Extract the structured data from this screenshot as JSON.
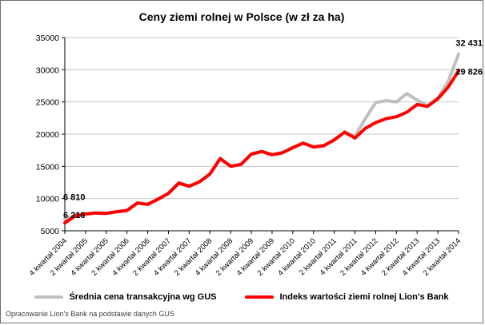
{
  "title": "Ceny ziemi rolnej w Polsce (w zł za ha)",
  "footer": "Opracowanie Lion's Bank na podstawie danych GUS",
  "chart_data": {
    "type": "line",
    "title": "Ceny ziemi rolnej w Polsce (w zł za ha)",
    "xlabel": "",
    "ylabel": "",
    "ylim": [
      5000,
      35000
    ],
    "y_ticks": [
      5000,
      10000,
      15000,
      20000,
      25000,
      30000,
      35000
    ],
    "grid": "horizontal",
    "legend_position": "bottom",
    "x_tick_labels": [
      "4 kwartał 2004",
      "2 kwartał 2005",
      "4 kwartał 2005",
      "2 kwartał 2006",
      "4 kwartał 2006",
      "2 kwartał 2007",
      "4 kwartał 2007",
      "2 kwartał 2008",
      "4 kwartał 2008",
      "2 kwartał 2009",
      "4 kwartał 2009",
      "2 kwartał 2010",
      "4 kwartał 2010",
      "2 kwartał 2011",
      "4 kwartał 2011",
      "2 kwartał 2012",
      "4 kwartał 2012",
      "2 kwartał 2013",
      "4 kwartał 2013",
      "2 kwartał 2014"
    ],
    "series": [
      {
        "name": "Średnia cena transakcyjna wg GUS",
        "color": "#bfbfbf",
        "values": [
          6810,
          7400,
          7650,
          7800,
          7750,
          8000,
          8200,
          9350,
          9150,
          9950,
          10850,
          12450,
          11950,
          12650,
          13850,
          16250,
          15050,
          15350,
          16950,
          17350,
          16850,
          17150,
          17950,
          18650,
          18050,
          18250,
          19150,
          20350,
          19700,
          22400,
          24900,
          25200,
          25000,
          26300,
          25300,
          24400,
          25600,
          28200,
          32431
        ]
      },
      {
        "name": "Indeks wartości ziemi rolnej Lion's Bank",
        "color": "#ff0000",
        "values": [
          6216,
          7300,
          7600,
          7750,
          7700,
          7950,
          8150,
          9300,
          9100,
          9900,
          10800,
          12400,
          11900,
          12600,
          13800,
          16200,
          15000,
          15300,
          16900,
          17300,
          16800,
          17100,
          17900,
          18600,
          18000,
          18200,
          19100,
          20300,
          19400,
          20900,
          21800,
          22400,
          22700,
          23400,
          24600,
          24300,
          25500,
          27300,
          29826
        ]
      }
    ],
    "annotations": [
      {
        "series": "Średnia cena transakcyjna wg GUS",
        "point": "first",
        "label": "6 810",
        "value": 6810
      },
      {
        "series": "Indeks wartości ziemi rolnej Lion's Bank",
        "point": "first",
        "label": "6 216",
        "value": 6216
      },
      {
        "series": "Średnia cena transakcyjna wg GUS",
        "point": "last",
        "label": "32 431",
        "value": 32431
      },
      {
        "series": "Indeks wartości ziemi rolnej Lion's Bank",
        "point": "last",
        "label": "29 826",
        "value": 29826
      }
    ]
  }
}
